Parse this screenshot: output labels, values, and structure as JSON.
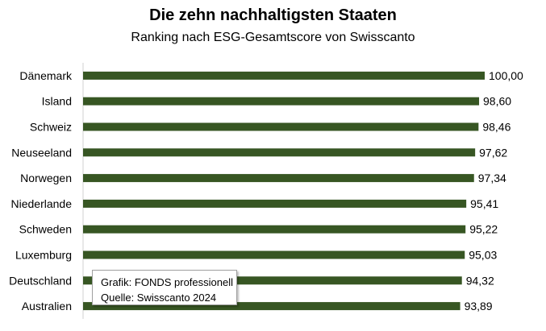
{
  "chart_data": {
    "type": "bar",
    "orientation": "horizontal",
    "title": "Die zehn nachhaltigsten Staaten",
    "subtitle": "Ranking nach ESG-Gesamtscore von Swisscanto",
    "categories": [
      "Dänemark",
      "Island",
      "Schweiz",
      "Neuseeland",
      "Norwegen",
      "Niederlande",
      "Schweden",
      "Luxemburg",
      "Deutschland",
      "Australien"
    ],
    "values": [
      100.0,
      98.6,
      98.46,
      97.62,
      97.34,
      95.41,
      95.22,
      95.03,
      94.32,
      93.89
    ],
    "value_labels": [
      "100,00",
      "98,60",
      "98,46",
      "97,62",
      "97,34",
      "95,41",
      "95,22",
      "95,03",
      "94,32",
      "93,89"
    ],
    "xlim": [
      0,
      100
    ],
    "bar_color": "#375623",
    "grid": false,
    "legend": "none"
  },
  "note": {
    "source_graphic": "Grafik: FONDS professionell",
    "source_data": "Quelle: Swisscanto 2024"
  }
}
